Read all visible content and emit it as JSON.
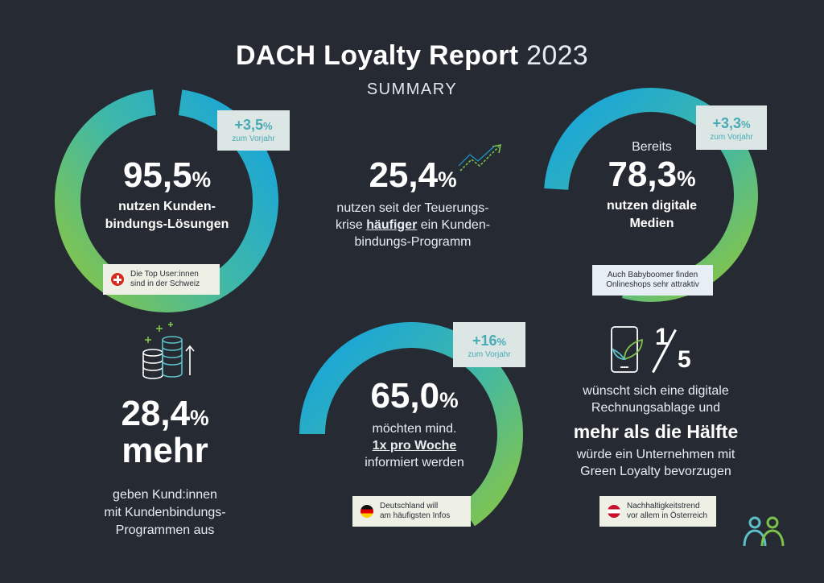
{
  "header": {
    "title_main": "DACH Loyalty Report",
    "title_year": "2023",
    "subtitle": "SUMMARY"
  },
  "stat1": {
    "value": "95,5",
    "unit": "%",
    "line1": "nutzen Kunden-",
    "line2": "bindungs-Lösungen",
    "badge_value": "+3,5",
    "badge_unit": "%",
    "badge_sub": "zum Vorjahr",
    "note_line1": "Die Top User:innen",
    "note_line2": "sind in der Schweiz",
    "ring_fraction": 0.955
  },
  "stat2": {
    "value": "25,4",
    "unit": "%",
    "line1": "nutzen seit der Teuerungs-",
    "line2_pre": "krise ",
    "line2_em": "häufiger",
    "line2_post": " ein Kunden-",
    "line3": "bindungs-Programm"
  },
  "stat3": {
    "pre": "Bereits",
    "value": "78,3",
    "unit": "%",
    "line1": "nutzen digitale",
    "line2": "Medien",
    "badge_value": "+3,3",
    "badge_unit": "%",
    "badge_sub": "zum Vorjahr",
    "note_line1": "Auch Babyboomer finden",
    "note_line2": "Onlineshops sehr attraktiv",
    "ring_fraction": 0.783
  },
  "stat4": {
    "value": "28,4",
    "unit": "%",
    "big2": "mehr",
    "line1": "geben Kund:innen",
    "line2": "mit Kundenbindungs-",
    "line3": "Programmen aus"
  },
  "stat5": {
    "value": "65,0",
    "unit": "%",
    "line1": "möchten mind.",
    "line2": "1x pro Woche",
    "line3": "informiert werden",
    "badge_value": "+16",
    "badge_unit": "%",
    "badge_sub": "zum Vorjahr",
    "note_line1": "Deutschland will",
    "note_line2": "am häufigsten Infos",
    "ring_fraction": 0.65
  },
  "stat6": {
    "fraction_num": "1",
    "fraction_den": "5",
    "line1": "wünscht sich eine digitale",
    "line2": "Rechnungsablage und",
    "big": "mehr als die Hälfte",
    "line3": "würde ein Unternehmen mit",
    "line4": "Green Loyalty bevorzugen",
    "note_line1": "Nachhaltigkeitstrend",
    "note_line2": "vor allem in Österreich"
  },
  "colors": {
    "background": "#262b33",
    "ring_green": "#7dc24b",
    "ring_blue": "#1ba7dd",
    "badge_bg": "#dce7e5",
    "badge_text": "#4aaab5",
    "note_bg": "#eef0e6"
  },
  "icons": {
    "trend": "trend-arrow-icon",
    "coins": "coin-stack-icon",
    "phone": "phone-leaf-icon",
    "logo": "people-logo-icon"
  }
}
